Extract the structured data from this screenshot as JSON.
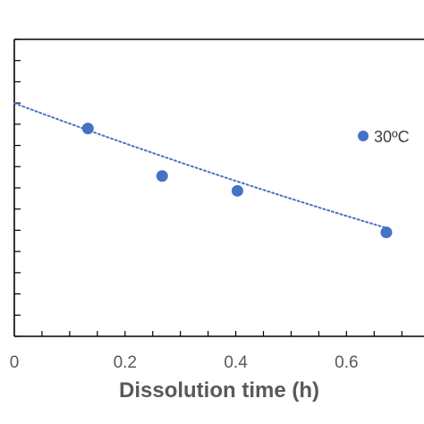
{
  "chart_data": {
    "type": "scatter",
    "xlabel": "Dissolution time (h)",
    "x_ticks": [
      "0",
      "0.2",
      "0.4",
      "0.6"
    ],
    "xlim": [
      0,
      0.74
    ],
    "ylim": [
      0,
      1
    ],
    "legend_placement": "right",
    "series": [
      {
        "name": "30ºC",
        "color": "#4472C4",
        "x": [
          0.133,
          0.267,
          0.403,
          0.672
        ],
        "y": [
          0.7,
          0.54,
          0.49,
          0.35
        ]
      }
    ],
    "trendline": {
      "style": "dotted",
      "color": "#4472C4",
      "x": [
        0.0,
        0.672
      ],
      "y": [
        0.785,
        0.365
      ]
    }
  }
}
